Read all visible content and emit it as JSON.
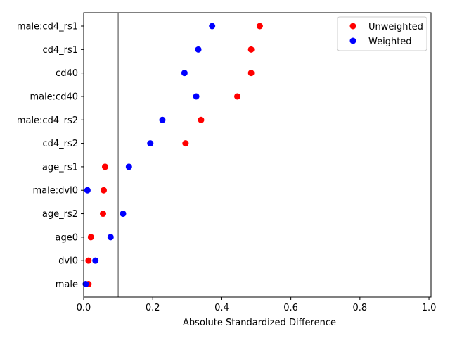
{
  "chart_data": {
    "type": "scatter",
    "title": "",
    "xlabel": "Absolute Standardized Difference",
    "ylabel": "",
    "xlim": [
      0,
      1.0
    ],
    "xticks": [
      0.0,
      0.2,
      0.4,
      0.6,
      0.8,
      1.0
    ],
    "xtick_labels": [
      "0.0",
      "0.2",
      "0.4",
      "0.6",
      "0.8",
      "1.0"
    ],
    "reference_line_x": 0.1,
    "categories": [
      "male:cd4_rs1",
      "cd4_rs1",
      "cd40",
      "male:cd40",
      "male:cd4_rs2",
      "cd4_rs2",
      "age_rs1",
      "male:dvl0",
      "age_rs2",
      "age0",
      "dvl0",
      "male"
    ],
    "series": [
      {
        "name": "Unweighted",
        "color": "#ff0000",
        "values": [
          0.51,
          0.485,
          0.485,
          0.445,
          0.34,
          0.295,
          0.062,
          0.058,
          0.056,
          0.021,
          0.014,
          0.014
        ]
      },
      {
        "name": "Weighted",
        "color": "#0000ff",
        "values": [
          0.372,
          0.332,
          0.292,
          0.326,
          0.228,
          0.193,
          0.131,
          0.011,
          0.114,
          0.078,
          0.034,
          0.006
        ]
      }
    ],
    "grid": false,
    "legend_position": "top-right"
  }
}
